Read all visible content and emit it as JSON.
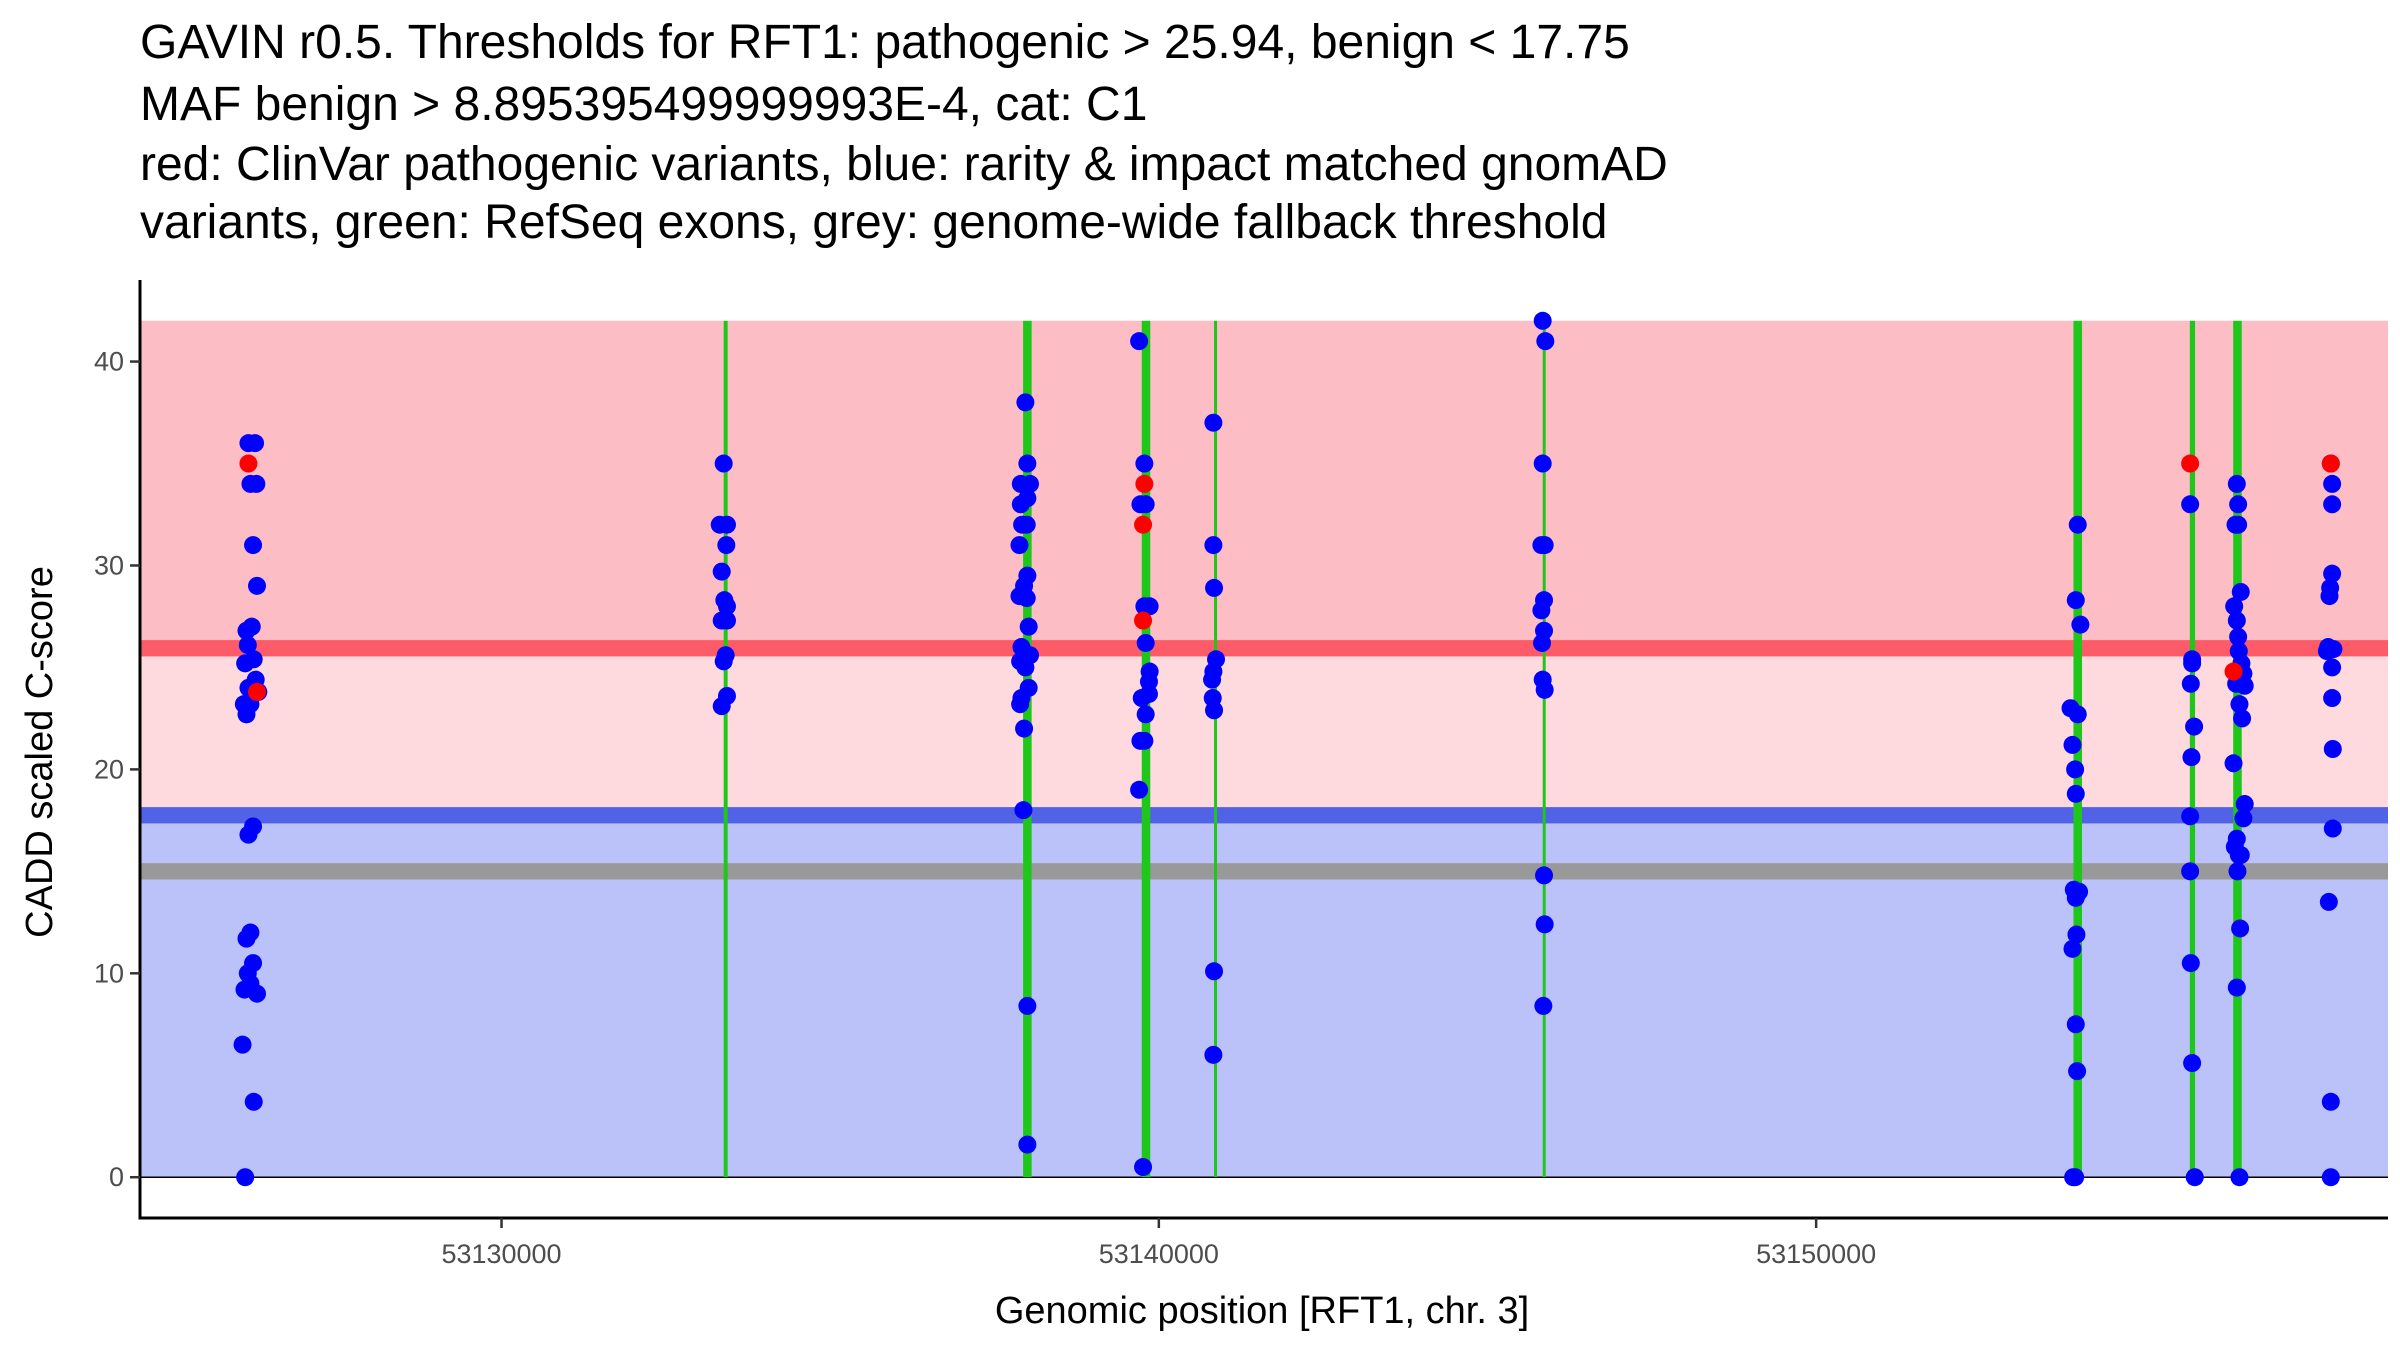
{
  "chart_data": {
    "type": "scatter",
    "title_lines": [
      "GAVIN r0.5. Thresholds for RFT1: pathogenic > 25.94, benign < 17.75",
      "MAF benign > 8.895395499999993E-4, cat: C1",
      "red: ClinVar pathogenic variants, blue: rarity & impact matched gnomAD",
      "variants, green: RefSeq exons, grey: genome-wide fallback threshold"
    ],
    "xlabel": "Genomic position [RFT1, chr. 3]",
    "ylabel": "CADD scaled C-score",
    "xlim": [
      53124500,
      53158700
    ],
    "ylim": [
      -2.0,
      44.0
    ],
    "x_ticks": [
      53130000,
      53140000,
      53150000
    ],
    "y_ticks": [
      0,
      10,
      20,
      30,
      40
    ],
    "grid": false,
    "colors": {
      "pathogenic_zone": "#fcbdc4",
      "uncertain_zone": "#fed9de",
      "benign_zone": "#bbc2fa",
      "pathogenic_line": "#fd5b67",
      "benign_line": "#5162e7",
      "fallback_line": "#999999",
      "exon": "#1ec71a",
      "clinvar": "#ff0000",
      "gnomad": "#0000ff",
      "axis": "#000000"
    },
    "thresholds": {
      "pathogenic": 25.94,
      "benign": 17.75,
      "fallback": 15.0,
      "max_score": 42.0
    },
    "exons": [
      {
        "start": 53133380,
        "end": 53133440
      },
      {
        "start": 53137935,
        "end": 53138065
      },
      {
        "start": 53139740,
        "end": 53139870
      },
      {
        "start": 53140840,
        "end": 53140880
      },
      {
        "start": 53145840,
        "end": 53145880
      },
      {
        "start": 53153915,
        "end": 53154045
      },
      {
        "start": 53155685,
        "end": 53155765
      },
      {
        "start": 53156345,
        "end": 53156475
      }
    ],
    "series": [
      {
        "name": "gnomAD",
        "points": [
          [
            53126150,
            36
          ],
          [
            53126250,
            36
          ],
          [
            53126180,
            34
          ],
          [
            53126270,
            34
          ],
          [
            53126220,
            31
          ],
          [
            53126280,
            29
          ],
          [
            53126120,
            26.8
          ],
          [
            53126200,
            27
          ],
          [
            53126140,
            26.1
          ],
          [
            53126230,
            25.4
          ],
          [
            53126100,
            25.2
          ],
          [
            53126260,
            24.4
          ],
          [
            53126150,
            24
          ],
          [
            53126300,
            23.8
          ],
          [
            53126080,
            23.2
          ],
          [
            53126180,
            23.2
          ],
          [
            53126120,
            22.7
          ],
          [
            53126220,
            17.2
          ],
          [
            53126150,
            16.8
          ],
          [
            53126180,
            12
          ],
          [
            53126120,
            11.7
          ],
          [
            53126220,
            10.5
          ],
          [
            53126140,
            10
          ],
          [
            53126180,
            9.5
          ],
          [
            53126090,
            9.2
          ],
          [
            53126280,
            9
          ],
          [
            53126060,
            6.5
          ],
          [
            53126230,
            3.7
          ],
          [
            53126100,
            0
          ],
          [
            53133380,
            35
          ],
          [
            53133320,
            32
          ],
          [
            53133430,
            32
          ],
          [
            53133420,
            31
          ],
          [
            53133350,
            29.7
          ],
          [
            53133390,
            28.3
          ],
          [
            53133430,
            28
          ],
          [
            53133350,
            27.3
          ],
          [
            53133430,
            27.3
          ],
          [
            53133380,
            25.3
          ],
          [
            53133410,
            25.6
          ],
          [
            53133430,
            23.6
          ],
          [
            53133350,
            23.1
          ],
          [
            53137970,
            38
          ],
          [
            53137900,
            34
          ],
          [
            53138040,
            34
          ],
          [
            53137900,
            33
          ],
          [
            53138000,
            33.3
          ],
          [
            53138000,
            35
          ],
          [
            53137920,
            32
          ],
          [
            53137990,
            32
          ],
          [
            53137880,
            31
          ],
          [
            53138000,
            29.5
          ],
          [
            53137950,
            29
          ],
          [
            53137880,
            28.5
          ],
          [
            53137990,
            28.4
          ],
          [
            53138020,
            27
          ],
          [
            53137910,
            26
          ],
          [
            53138040,
            25.6
          ],
          [
            53137890,
            25.3
          ],
          [
            53137970,
            25
          ],
          [
            53138020,
            24
          ],
          [
            53137910,
            23.5
          ],
          [
            53137890,
            23.2
          ],
          [
            53137950,
            22
          ],
          [
            53137940,
            18
          ],
          [
            53138000,
            8.4
          ],
          [
            53138000,
            1.6
          ],
          [
            53139700,
            41
          ],
          [
            53139780,
            35
          ],
          [
            53139720,
            33
          ],
          [
            53139800,
            33
          ],
          [
            53139780,
            28
          ],
          [
            53139860,
            28
          ],
          [
            53139800,
            26.2
          ],
          [
            53139860,
            24.8
          ],
          [
            53139850,
            24.3
          ],
          [
            53139850,
            23.7
          ],
          [
            53139740,
            23.5
          ],
          [
            53139800,
            22.7
          ],
          [
            53139720,
            21.4
          ],
          [
            53139780,
            21.4
          ],
          [
            53139700,
            19
          ],
          [
            53139760,
            0.5
          ],
          [
            53140830,
            37
          ],
          [
            53140830,
            31
          ],
          [
            53140870,
            25.4
          ],
          [
            53140830,
            24.8
          ],
          [
            53140810,
            24.4
          ],
          [
            53140820,
            23.5
          ],
          [
            53140840,
            22.9
          ],
          [
            53140840,
            28.9
          ],
          [
            53140840,
            10.1
          ],
          [
            53140830,
            6
          ],
          [
            53145840,
            42
          ],
          [
            53145880,
            41
          ],
          [
            53145840,
            35
          ],
          [
            53145870,
            31
          ],
          [
            53145820,
            31
          ],
          [
            53145860,
            28.3
          ],
          [
            53145820,
            27.8
          ],
          [
            53145860,
            26.8
          ],
          [
            53145830,
            26.2
          ],
          [
            53145840,
            24.4
          ],
          [
            53145870,
            23.9
          ],
          [
            53145860,
            14.8
          ],
          [
            53145870,
            12.4
          ],
          [
            53145850,
            8.4
          ],
          [
            53153980,
            32
          ],
          [
            53153950,
            28.3
          ],
          [
            53154020,
            27.1
          ],
          [
            53153870,
            23
          ],
          [
            53153980,
            22.7
          ],
          [
            53153900,
            21.2
          ],
          [
            53153940,
            20
          ],
          [
            53153950,
            18.8
          ],
          [
            53153920,
            14.1
          ],
          [
            53154000,
            14
          ],
          [
            53153950,
            13.7
          ],
          [
            53153960,
            11.9
          ],
          [
            53153900,
            11.2
          ],
          [
            53153950,
            7.5
          ],
          [
            53153970,
            5.2
          ],
          [
            53153910,
            0
          ],
          [
            53153940,
            0
          ],
          [
            53155690,
            33
          ],
          [
            53155720,
            25.2
          ],
          [
            53155720,
            25.4
          ],
          [
            53155700,
            24.2
          ],
          [
            53155750,
            22.1
          ],
          [
            53155710,
            20.6
          ],
          [
            53155690,
            17.7
          ],
          [
            53155690,
            15
          ],
          [
            53155700,
            10.5
          ],
          [
            53155720,
            5.6
          ],
          [
            53155760,
            0
          ],
          [
            53156400,
            34
          ],
          [
            53156420,
            33
          ],
          [
            53156380,
            32
          ],
          [
            53156420,
            32
          ],
          [
            53156460,
            28.7
          ],
          [
            53156360,
            28
          ],
          [
            53156400,
            27.3
          ],
          [
            53156420,
            26.5
          ],
          [
            53156430,
            25.8
          ],
          [
            53156470,
            25.2
          ],
          [
            53156500,
            24.7
          ],
          [
            53156390,
            24.2
          ],
          [
            53156520,
            24.1
          ],
          [
            53156440,
            23.2
          ],
          [
            53156350,
            20.3
          ],
          [
            53156480,
            22.5
          ],
          [
            53156520,
            18.3
          ],
          [
            53156500,
            17.6
          ],
          [
            53156400,
            16.6
          ],
          [
            53156370,
            16.2
          ],
          [
            53156430,
            15.8
          ],
          [
            53156460,
            15.8
          ],
          [
            53156410,
            15
          ],
          [
            53156450,
            12.2
          ],
          [
            53156400,
            9.3
          ],
          [
            53156440,
            0
          ],
          [
            53157830,
            35
          ],
          [
            53157850,
            34
          ],
          [
            53157850,
            33
          ],
          [
            53157850,
            29.6
          ],
          [
            53157820,
            28.9
          ],
          [
            53157810,
            28.5
          ],
          [
            53157790,
            26
          ],
          [
            53157870,
            25.9
          ],
          [
            53157850,
            25
          ],
          [
            53157770,
            25.8
          ],
          [
            53157850,
            23.5
          ],
          [
            53157860,
            21
          ],
          [
            53157860,
            17.1
          ],
          [
            53157800,
            13.5
          ],
          [
            53157830,
            3.7
          ],
          [
            53157830,
            0
          ]
        ]
      },
      {
        "name": "ClinVar",
        "points": [
          [
            53126150,
            35
          ],
          [
            53126280,
            23.8
          ],
          [
            53139780,
            34
          ],
          [
            53139760,
            32
          ],
          [
            53139760,
            27.3
          ],
          [
            53155690,
            35
          ],
          [
            53156350,
            24.8
          ],
          [
            53157830,
            35
          ]
        ]
      }
    ]
  }
}
